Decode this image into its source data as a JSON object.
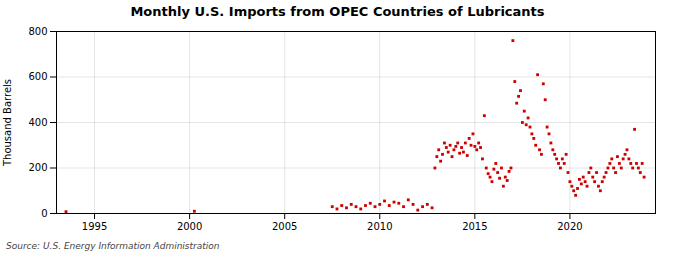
{
  "chart_data": {
    "type": "scatter",
    "title": "Monthly U.S. Imports from OPEC Countries of Lubricants",
    "ylabel": "Thousand Barrels",
    "source": "Source: U.S. Energy Information Administration",
    "color": "#cc0000",
    "marker": "square",
    "grid": true,
    "xlim": [
      1993.0,
      2024.5
    ],
    "ylim": [
      0,
      800
    ],
    "xticks": [
      1995,
      2000,
      2005,
      2010,
      2015,
      2020
    ],
    "yticks": [
      0,
      200,
      400,
      600,
      800
    ],
    "x": [
      1993.5,
      2000.25,
      2007.5,
      2007.75,
      2008.0,
      2008.25,
      2008.5,
      2008.75,
      2009.0,
      2009.25,
      2009.5,
      2009.75,
      2010.0,
      2010.25,
      2010.5,
      2010.75,
      2011.0,
      2011.25,
      2011.5,
      2011.75,
      2012.0,
      2012.25,
      2012.5,
      2012.75,
      2012.9,
      2013.0,
      2013.1,
      2013.2,
      2013.3,
      2013.4,
      2013.5,
      2013.6,
      2013.7,
      2013.8,
      2013.9,
      2014.0,
      2014.1,
      2014.2,
      2014.3,
      2014.4,
      2014.5,
      2014.6,
      2014.7,
      2014.8,
      2014.9,
      2015.0,
      2015.1,
      2015.2,
      2015.3,
      2015.4,
      2015.5,
      2015.6,
      2015.7,
      2015.8,
      2015.9,
      2016.0,
      2016.1,
      2016.2,
      2016.3,
      2016.4,
      2016.5,
      2016.6,
      2016.7,
      2016.8,
      2016.9,
      2017.0,
      2017.1,
      2017.2,
      2017.3,
      2017.4,
      2017.5,
      2017.6,
      2017.7,
      2017.8,
      2017.9,
      2018.0,
      2018.1,
      2018.2,
      2018.3,
      2018.4,
      2018.5,
      2018.6,
      2018.7,
      2018.8,
      2018.9,
      2019.0,
      2019.1,
      2019.2,
      2019.3,
      2019.4,
      2019.5,
      2019.6,
      2019.7,
      2019.8,
      2019.9,
      2020.0,
      2020.1,
      2020.2,
      2020.3,
      2020.4,
      2020.5,
      2020.6,
      2020.7,
      2020.8,
      2020.9,
      2021.0,
      2021.1,
      2021.2,
      2021.3,
      2021.4,
      2021.5,
      2021.6,
      2021.7,
      2021.8,
      2021.9,
      2022.0,
      2022.1,
      2022.2,
      2022.3,
      2022.4,
      2022.5,
      2022.6,
      2022.7,
      2022.8,
      2022.9,
      2023.0,
      2023.1,
      2023.2,
      2023.3,
      2023.4,
      2023.5,
      2023.6,
      2023.7,
      2023.8,
      2023.9
    ],
    "values": [
      8,
      10,
      30,
      20,
      35,
      25,
      40,
      30,
      20,
      35,
      45,
      30,
      40,
      55,
      35,
      50,
      45,
      30,
      60,
      40,
      15,
      30,
      40,
      25,
      200,
      250,
      280,
      230,
      260,
      310,
      290,
      270,
      300,
      250,
      280,
      295,
      310,
      265,
      290,
      270,
      310,
      255,
      330,
      300,
      350,
      295,
      280,
      310,
      290,
      240,
      430,
      200,
      175,
      160,
      140,
      195,
      220,
      180,
      155,
      200,
      120,
      160,
      145,
      185,
      200,
      760,
      580,
      485,
      515,
      540,
      400,
      450,
      390,
      420,
      380,
      350,
      330,
      300,
      610,
      280,
      260,
      570,
      500,
      380,
      350,
      310,
      280,
      260,
      240,
      220,
      200,
      240,
      220,
      260,
      180,
      140,
      120,
      100,
      80,
      110,
      150,
      130,
      160,
      140,
      120,
      180,
      200,
      160,
      140,
      180,
      120,
      100,
      140,
      160,
      180,
      200,
      220,
      240,
      200,
      180,
      250,
      220,
      200,
      240,
      260,
      280,
      240,
      220,
      200,
      370,
      220,
      200,
      180,
      220,
      160
    ]
  }
}
